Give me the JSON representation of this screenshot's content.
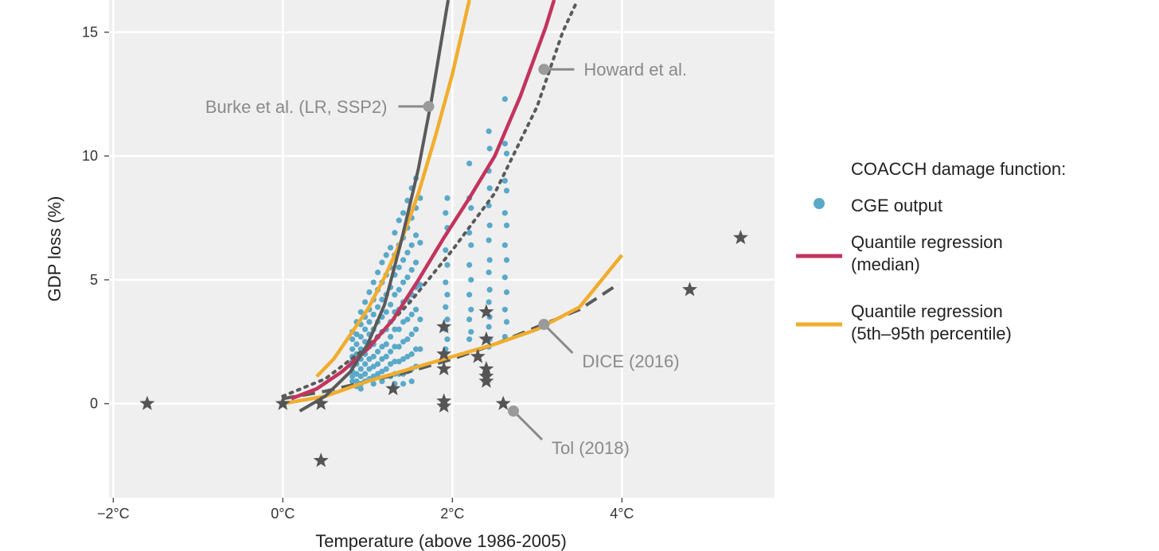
{
  "chart_data": {
    "type": "scatter",
    "xlabel": "Temperature (above 1986-2005)",
    "ylabel": "GDP loss (%)",
    "xlim": [
      -2.05,
      5.8
    ],
    "ylim": [
      -3.8,
      16.3
    ],
    "x_ticks": [
      {
        "value": -2,
        "label": "−2°C"
      },
      {
        "value": 0,
        "label": "0°C"
      },
      {
        "value": 2,
        "label": "2°C"
      },
      {
        "value": 4,
        "label": "4°C"
      }
    ],
    "y_ticks": [
      {
        "value": 0,
        "label": "0"
      },
      {
        "value": 5,
        "label": "5"
      },
      {
        "value": 10,
        "label": "10"
      },
      {
        "value": 15,
        "label": "15"
      }
    ],
    "grid": true,
    "legend": {
      "position": "right",
      "title": "COACCH damage function:",
      "entries": [
        {
          "label": "CGE output",
          "symbol": "point",
          "color": "#5aa9c9"
        },
        {
          "label": "Quantile regression\n(median)",
          "symbol": "line",
          "color": "#c2345e"
        },
        {
          "label": "Quantile regression\n(5th–95th percentile)",
          "symbol": "line",
          "color": "#f0ad2e"
        }
      ]
    },
    "cge_output": {
      "color": "#5aa9c9",
      "points": [
        [
          0.82,
          2.6
        ],
        [
          0.82,
          2.2
        ],
        [
          0.82,
          1.9
        ],
        [
          0.82,
          1.7
        ],
        [
          0.82,
          1.5
        ],
        [
          0.82,
          1.3
        ],
        [
          0.82,
          1.1
        ],
        [
          0.82,
          0.9
        ],
        [
          0.82,
          2.9
        ],
        [
          0.87,
          3.3
        ],
        [
          0.87,
          2.8
        ],
        [
          0.87,
          2.4
        ],
        [
          0.87,
          2.0
        ],
        [
          0.87,
          1.6
        ],
        [
          0.87,
          1.2
        ],
        [
          0.87,
          0.9
        ],
        [
          0.87,
          0.7
        ],
        [
          0.92,
          3.7
        ],
        [
          0.92,
          3.2
        ],
        [
          0.92,
          2.7
        ],
        [
          0.92,
          2.2
        ],
        [
          0.92,
          1.8
        ],
        [
          0.92,
          1.4
        ],
        [
          0.92,
          1.1
        ],
        [
          0.92,
          0.8
        ],
        [
          0.92,
          0.6
        ],
        [
          0.97,
          4.1
        ],
        [
          0.97,
          3.5
        ],
        [
          0.97,
          3.0
        ],
        [
          0.97,
          2.5
        ],
        [
          0.97,
          2.0
        ],
        [
          0.97,
          1.6
        ],
        [
          0.97,
          1.2
        ],
        [
          0.97,
          0.9
        ],
        [
          1.02,
          4.5
        ],
        [
          1.02,
          3.8
        ],
        [
          1.02,
          3.3
        ],
        [
          1.02,
          2.8
        ],
        [
          1.02,
          2.3
        ],
        [
          1.02,
          1.8
        ],
        [
          1.02,
          1.4
        ],
        [
          1.02,
          1.0
        ],
        [
          1.07,
          4.9
        ],
        [
          1.07,
          4.2
        ],
        [
          1.07,
          3.6
        ],
        [
          1.07,
          3.0
        ],
        [
          1.07,
          2.4
        ],
        [
          1.07,
          1.9
        ],
        [
          1.07,
          1.5
        ],
        [
          1.07,
          1.1
        ],
        [
          1.07,
          0.8
        ],
        [
          1.12,
          5.3
        ],
        [
          1.12,
          4.6
        ],
        [
          1.12,
          3.9
        ],
        [
          1.12,
          3.3
        ],
        [
          1.12,
          2.7
        ],
        [
          1.12,
          2.1
        ],
        [
          1.12,
          1.6
        ],
        [
          1.12,
          1.2
        ],
        [
          1.17,
          5.7
        ],
        [
          1.17,
          4.9
        ],
        [
          1.17,
          4.2
        ],
        [
          1.17,
          3.5
        ],
        [
          1.17,
          2.9
        ],
        [
          1.17,
          2.3
        ],
        [
          1.17,
          1.8
        ],
        [
          1.17,
          1.3
        ],
        [
          1.17,
          0.9
        ],
        [
          1.22,
          6.0
        ],
        [
          1.22,
          5.2
        ],
        [
          1.22,
          4.4
        ],
        [
          1.22,
          3.7
        ],
        [
          1.22,
          3.0
        ],
        [
          1.22,
          2.4
        ],
        [
          1.22,
          1.9
        ],
        [
          1.22,
          1.4
        ],
        [
          1.27,
          6.3
        ],
        [
          1.27,
          5.5
        ],
        [
          1.27,
          4.7
        ],
        [
          1.27,
          4.0
        ],
        [
          1.27,
          3.3
        ],
        [
          1.27,
          2.7
        ],
        [
          1.27,
          2.1
        ],
        [
          1.27,
          1.6
        ],
        [
          1.27,
          1.1
        ],
        [
          1.32,
          6.9
        ],
        [
          1.32,
          6.0
        ],
        [
          1.32,
          5.2
        ],
        [
          1.32,
          4.4
        ],
        [
          1.32,
          3.7
        ],
        [
          1.32,
          3.0
        ],
        [
          1.32,
          2.3
        ],
        [
          1.32,
          1.7
        ],
        [
          1.32,
          1.2
        ],
        [
          1.32,
          0.8
        ],
        [
          1.37,
          7.4
        ],
        [
          1.37,
          6.4
        ],
        [
          1.37,
          5.5
        ],
        [
          1.37,
          4.6
        ],
        [
          1.37,
          3.8
        ],
        [
          1.37,
          3.0
        ],
        [
          1.37,
          2.3
        ],
        [
          1.37,
          1.7
        ],
        [
          1.37,
          1.2
        ],
        [
          1.42,
          7.7
        ],
        [
          1.42,
          6.7
        ],
        [
          1.42,
          5.8
        ],
        [
          1.42,
          4.9
        ],
        [
          1.42,
          4.1
        ],
        [
          1.42,
          3.3
        ],
        [
          1.42,
          2.5
        ],
        [
          1.42,
          1.8
        ],
        [
          1.42,
          1.2
        ],
        [
          1.42,
          0.8
        ],
        [
          1.47,
          8.2
        ],
        [
          1.47,
          7.1
        ],
        [
          1.47,
          6.1
        ],
        [
          1.47,
          5.1
        ],
        [
          1.47,
          4.2
        ],
        [
          1.47,
          3.4
        ],
        [
          1.47,
          2.6
        ],
        [
          1.47,
          1.9
        ],
        [
          1.47,
          1.3
        ],
        [
          1.52,
          8.7
        ],
        [
          1.52,
          7.5
        ],
        [
          1.52,
          6.4
        ],
        [
          1.52,
          5.4
        ],
        [
          1.52,
          4.4
        ],
        [
          1.52,
          3.6
        ],
        [
          1.52,
          2.8
        ],
        [
          1.52,
          2.0
        ],
        [
          1.52,
          1.4
        ],
        [
          1.52,
          0.9
        ],
        [
          1.57,
          9.1
        ],
        [
          1.57,
          7.9
        ],
        [
          1.57,
          6.8
        ],
        [
          1.57,
          5.7
        ],
        [
          1.57,
          4.7
        ],
        [
          1.57,
          3.8
        ],
        [
          1.57,
          3.0
        ],
        [
          1.57,
          2.2
        ],
        [
          1.57,
          1.5
        ],
        [
          1.62,
          8.3
        ],
        [
          1.62,
          6.5
        ],
        [
          1.62,
          4.8
        ],
        [
          1.62,
          3.4
        ],
        [
          1.62,
          2.2
        ],
        [
          1.92,
          7.7
        ],
        [
          1.92,
          6.2
        ],
        [
          1.92,
          4.9
        ],
        [
          1.92,
          3.9
        ],
        [
          1.92,
          3.0
        ],
        [
          1.92,
          2.2
        ],
        [
          1.94,
          8.3
        ],
        [
          1.94,
          7.1
        ],
        [
          1.94,
          5.6
        ],
        [
          1.94,
          4.4
        ],
        [
          1.94,
          3.4
        ],
        [
          1.94,
          2.6
        ],
        [
          1.94,
          1.8
        ],
        [
          2.2,
          9.7
        ],
        [
          2.2,
          8.3
        ],
        [
          2.2,
          6.9
        ],
        [
          2.2,
          5.6
        ],
        [
          2.2,
          4.4
        ],
        [
          2.2,
          3.4
        ],
        [
          2.2,
          2.6
        ],
        [
          2.22,
          7.9
        ],
        [
          2.22,
          6.4
        ],
        [
          2.22,
          5.0
        ],
        [
          2.22,
          3.8
        ],
        [
          2.22,
          2.9
        ],
        [
          2.43,
          11.0
        ],
        [
          2.43,
          9.4
        ],
        [
          2.43,
          8.0
        ],
        [
          2.43,
          6.6
        ],
        [
          2.43,
          5.3
        ],
        [
          2.43,
          4.1
        ],
        [
          2.43,
          3.1
        ],
        [
          2.43,
          2.3
        ],
        [
          2.44,
          10.3
        ],
        [
          2.44,
          8.7
        ],
        [
          2.44,
          7.2
        ],
        [
          2.44,
          5.8
        ],
        [
          2.44,
          4.6
        ],
        [
          2.44,
          3.5
        ],
        [
          2.44,
          2.6
        ],
        [
          2.62,
          12.3
        ],
        [
          2.62,
          10.5
        ],
        [
          2.62,
          9.0
        ],
        [
          2.62,
          7.7
        ],
        [
          2.62,
          6.4
        ],
        [
          2.62,
          5.1
        ],
        [
          2.62,
          3.8
        ],
        [
          2.62,
          2.7
        ],
        [
          2.64,
          10.1
        ],
        [
          2.64,
          8.6
        ],
        [
          2.64,
          7.2
        ],
        [
          2.64,
          5.8
        ],
        [
          2.64,
          4.5
        ],
        [
          2.64,
          3.3
        ]
      ]
    },
    "curves": {
      "median": {
        "color": "#c2345e",
        "points": [
          [
            0.1,
            0.2
          ],
          [
            0.4,
            0.6
          ],
          [
            0.7,
            1.3
          ],
          [
            1.0,
            2.2
          ],
          [
            1.3,
            3.4
          ],
          [
            1.6,
            5.0
          ],
          [
            1.9,
            6.7
          ],
          [
            2.2,
            8.3
          ],
          [
            2.5,
            10.0
          ],
          [
            2.8,
            12.4
          ],
          [
            3.1,
            15.2
          ],
          [
            3.2,
            16.3
          ]
        ]
      },
      "percentile": {
        "color": "#f0ad2e",
        "points": [
          [
            0.4,
            1.1
          ],
          [
            0.6,
            1.8
          ],
          [
            0.8,
            2.8
          ],
          [
            1.0,
            3.8
          ],
          [
            1.2,
            5.1
          ],
          [
            1.4,
            6.6
          ],
          [
            1.6,
            8.5
          ],
          [
            1.8,
            10.8
          ],
          [
            2.0,
            13.3
          ],
          [
            2.2,
            16.3
          ]
        ]
      },
      "lower_percentile": {
        "color": "#f0ad2e",
        "points": [
          [
            0.0,
            0.0
          ],
          [
            0.5,
            0.3
          ],
          [
            1.0,
            0.9
          ],
          [
            1.5,
            1.4
          ],
          [
            2.0,
            1.9
          ],
          [
            2.5,
            2.4
          ],
          [
            3.0,
            3.0
          ],
          [
            3.5,
            3.9
          ],
          [
            4.0,
            6.0
          ]
        ]
      },
      "burke": {
        "label": "Burke et al. (LR, SSP2)",
        "color": "#5a5a5a",
        "points": [
          [
            0.2,
            -0.3
          ],
          [
            0.5,
            0.3
          ],
          [
            0.8,
            1.3
          ],
          [
            1.0,
            2.4
          ],
          [
            1.2,
            4.0
          ],
          [
            1.4,
            6.6
          ],
          [
            1.6,
            9.5
          ],
          [
            1.75,
            12.2
          ],
          [
            1.95,
            16.3
          ]
        ]
      },
      "howard": {
        "label": "Howard et al.",
        "color": "#5a5a5a",
        "points": [
          [
            0.0,
            0.3
          ],
          [
            0.5,
            1.0
          ],
          [
            1.0,
            2.3
          ],
          [
            1.5,
            4.1
          ],
          [
            2.0,
            6.2
          ],
          [
            2.5,
            8.5
          ],
          [
            3.0,
            12.0
          ],
          [
            3.3,
            15.0
          ],
          [
            3.45,
            16.1
          ]
        ]
      },
      "dice": {
        "label": "DICE (2016)",
        "color": "#5a5a5a",
        "points": [
          [
            0.0,
            0.2
          ],
          [
            0.5,
            0.5
          ],
          [
            1.0,
            0.9
          ],
          [
            1.5,
            1.3
          ],
          [
            2.0,
            1.8
          ],
          [
            2.5,
            2.4
          ],
          [
            3.0,
            3.1
          ],
          [
            3.5,
            3.8
          ],
          [
            3.9,
            4.7
          ]
        ]
      }
    },
    "studies": {
      "label": "Tol (2018)",
      "color": "#555555",
      "points": [
        [
          -1.6,
          0.0
        ],
        [
          0.0,
          0.0
        ],
        [
          0.45,
          0.0
        ],
        [
          0.45,
          -2.3
        ],
        [
          1.3,
          0.6
        ],
        [
          1.9,
          3.1
        ],
        [
          1.9,
          2.0
        ],
        [
          1.9,
          1.4
        ],
        [
          1.9,
          0.1
        ],
        [
          1.9,
          -0.1
        ],
        [
          2.3,
          1.9
        ],
        [
          2.4,
          3.7
        ],
        [
          2.4,
          2.6
        ],
        [
          2.4,
          1.4
        ],
        [
          2.4,
          1.1
        ],
        [
          2.4,
          0.9
        ],
        [
          2.6,
          0.0
        ],
        [
          4.8,
          4.6
        ],
        [
          5.4,
          6.7
        ]
      ]
    },
    "annotations": [
      {
        "text": "Burke et al. (LR, SSP2)",
        "x": 1.72,
        "y": 12.0,
        "side": "left"
      },
      {
        "text": "Howard et al.",
        "x": 3.08,
        "y": 13.5,
        "side": "right"
      },
      {
        "text": "DICE (2016)",
        "x": 3.08,
        "y": 3.2,
        "side": "below-right"
      },
      {
        "text": "Tol (2018)",
        "x": 2.72,
        "y": -0.3,
        "side": "below-right"
      }
    ]
  }
}
